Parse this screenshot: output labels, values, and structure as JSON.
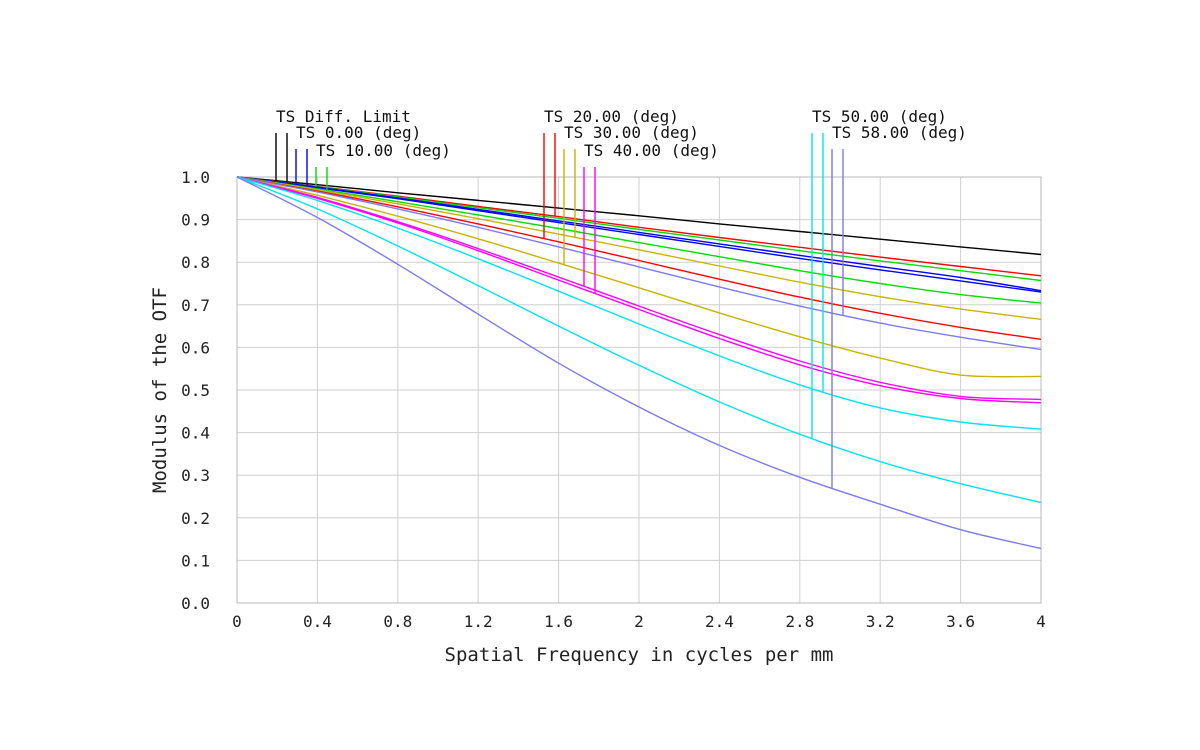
{
  "chart_data": {
    "type": "line",
    "xlabel": "Spatial Frequency in cycles per mm",
    "ylabel": "Modulus of the OTF",
    "xlim": [
      0,
      4
    ],
    "ylim": [
      0,
      1
    ],
    "x_ticks": [
      "0",
      "0.4",
      "0.8",
      "1.2",
      "1.6",
      "2",
      "2.4",
      "2.8",
      "3.2",
      "3.6",
      "4"
    ],
    "y_ticks": [
      "0.0",
      "0.1",
      "0.2",
      "0.3",
      "0.4",
      "0.5",
      "0.6",
      "0.7",
      "0.8",
      "0.9",
      "1.0"
    ],
    "grid": true,
    "legend_groups": [
      {
        "label": "TS Diff. Limit",
        "colors": [
          "#000000",
          "#000000"
        ]
      },
      {
        "label": "TS 0.00 (deg)",
        "colors": [
          "#0000ff",
          "#0000ff"
        ]
      },
      {
        "label": "TS 10.00 (deg)",
        "colors": [
          "#00dd00",
          "#00dd00"
        ]
      },
      {
        "label": "TS 20.00 (deg)",
        "colors": [
          "#ff0000",
          "#ff0000"
        ]
      },
      {
        "label": "TS 30.00 (deg)",
        "colors": [
          "#c8b400",
          "#c8b400"
        ]
      },
      {
        "label": "TS 40.00 (deg)",
        "colors": [
          "#ff00ff",
          "#ff00ff"
        ]
      },
      {
        "label": "TS 50.00 (deg)",
        "colors": [
          "#00e5ee",
          "#00e5ee"
        ]
      },
      {
        "label": "TS 58.00 (deg)",
        "colors": [
          "#7b7bef",
          "#7b7bef"
        ]
      }
    ],
    "series": [
      {
        "color": "#000000",
        "values": [
          [
            0,
            1.0
          ],
          [
            0.4,
            0.982
          ],
          [
            0.8,
            0.963
          ],
          [
            1.2,
            0.945
          ],
          [
            1.6,
            0.927
          ],
          [
            2,
            0.909
          ],
          [
            2.4,
            0.89
          ],
          [
            2.8,
            0.872
          ],
          [
            3.2,
            0.854
          ],
          [
            3.6,
            0.836
          ],
          [
            4,
            0.818
          ]
        ]
      },
      {
        "color": "#ff0000",
        "values": [
          [
            0,
            1.0
          ],
          [
            0.4,
            0.978
          ],
          [
            0.8,
            0.955
          ],
          [
            1.2,
            0.931
          ],
          [
            1.6,
            0.907
          ],
          [
            2,
            0.882
          ],
          [
            2.4,
            0.858
          ],
          [
            2.8,
            0.835
          ],
          [
            3.2,
            0.812
          ],
          [
            3.6,
            0.79
          ],
          [
            4,
            0.768
          ]
        ]
      },
      {
        "color": "#00dd00",
        "values": [
          [
            0,
            1.0
          ],
          [
            0.4,
            0.977
          ],
          [
            0.8,
            0.953
          ],
          [
            1.2,
            0.928
          ],
          [
            1.6,
            0.903
          ],
          [
            2,
            0.877
          ],
          [
            2.4,
            0.852
          ],
          [
            2.8,
            0.827
          ],
          [
            3.2,
            0.803
          ],
          [
            3.6,
            0.78
          ],
          [
            4,
            0.757
          ]
        ]
      },
      {
        "color": "#0000ff",
        "values": [
          [
            0,
            1.0
          ],
          [
            0.4,
            0.976
          ],
          [
            0.8,
            0.951
          ],
          [
            1.2,
            0.924
          ],
          [
            1.6,
            0.897
          ],
          [
            2,
            0.87
          ],
          [
            2.4,
            0.843
          ],
          [
            2.8,
            0.816
          ],
          [
            3.2,
            0.79
          ],
          [
            3.6,
            0.764
          ],
          [
            4,
            0.733
          ]
        ]
      },
      {
        "color": "#0000ff",
        "values": [
          [
            0,
            1.0
          ],
          [
            0.4,
            0.975
          ],
          [
            0.8,
            0.949
          ],
          [
            1.2,
            0.921
          ],
          [
            1.6,
            0.893
          ],
          [
            2,
            0.865
          ],
          [
            2.4,
            0.837
          ],
          [
            2.8,
            0.809
          ],
          [
            3.2,
            0.782
          ],
          [
            3.6,
            0.756
          ],
          [
            4,
            0.73
          ]
        ]
      },
      {
        "color": "#00dd00",
        "values": [
          [
            0,
            1.0
          ],
          [
            0.4,
            0.972
          ],
          [
            0.8,
            0.942
          ],
          [
            1.2,
            0.911
          ],
          [
            1.6,
            0.879
          ],
          [
            2,
            0.846
          ],
          [
            2.4,
            0.813
          ],
          [
            2.8,
            0.78
          ],
          [
            3.2,
            0.75
          ],
          [
            3.6,
            0.724
          ],
          [
            4,
            0.704
          ]
        ]
      },
      {
        "color": "#c8b400",
        "values": [
          [
            0,
            1.0
          ],
          [
            0.4,
            0.97
          ],
          [
            0.8,
            0.937
          ],
          [
            1.2,
            0.902
          ],
          [
            1.6,
            0.866
          ],
          [
            2,
            0.829
          ],
          [
            2.4,
            0.791
          ],
          [
            2.8,
            0.753
          ],
          [
            3.2,
            0.719
          ],
          [
            3.6,
            0.69
          ],
          [
            4,
            0.666
          ]
        ]
      },
      {
        "color": "#ff0000",
        "values": [
          [
            0,
            1.0
          ],
          [
            0.4,
            0.967
          ],
          [
            0.8,
            0.93
          ],
          [
            1.2,
            0.89
          ],
          [
            1.6,
            0.848
          ],
          [
            2,
            0.804
          ],
          [
            2.4,
            0.76
          ],
          [
            2.8,
            0.718
          ],
          [
            3.2,
            0.68
          ],
          [
            3.6,
            0.647
          ],
          [
            4,
            0.619
          ]
        ]
      },
      {
        "color": "#7b7bef",
        "values": [
          [
            0,
            1.0
          ],
          [
            0.4,
            0.965
          ],
          [
            0.8,
            0.925
          ],
          [
            1.2,
            0.882
          ],
          [
            1.6,
            0.836
          ],
          [
            2,
            0.789
          ],
          [
            2.4,
            0.742
          ],
          [
            2.8,
            0.697
          ],
          [
            3.2,
            0.657
          ],
          [
            3.6,
            0.624
          ],
          [
            4,
            0.595
          ]
        ]
      },
      {
        "color": "#c8b400",
        "values": [
          [
            0,
            1.0
          ],
          [
            0.4,
            0.957
          ],
          [
            0.8,
            0.908
          ],
          [
            1.2,
            0.855
          ],
          [
            1.6,
            0.798
          ],
          [
            2,
            0.74
          ],
          [
            2.4,
            0.681
          ],
          [
            2.8,
            0.625
          ],
          [
            3.2,
            0.575
          ],
          [
            3.6,
            0.535
          ],
          [
            4,
            0.532
          ]
        ]
      },
      {
        "color": "#ff00ff",
        "values": [
          [
            0,
            1.0
          ],
          [
            0.4,
            0.952
          ],
          [
            0.8,
            0.895
          ],
          [
            1.2,
            0.832
          ],
          [
            1.6,
            0.765
          ],
          [
            2,
            0.697
          ],
          [
            2.4,
            0.63
          ],
          [
            2.8,
            0.568
          ],
          [
            3.2,
            0.518
          ],
          [
            3.6,
            0.485
          ],
          [
            4,
            0.478
          ]
        ]
      },
      {
        "color": "#ff00ff",
        "values": [
          [
            0,
            1.0
          ],
          [
            0.4,
            0.95
          ],
          [
            0.8,
            0.892
          ],
          [
            1.2,
            0.827
          ],
          [
            1.6,
            0.758
          ],
          [
            2,
            0.689
          ],
          [
            2.4,
            0.621
          ],
          [
            2.8,
            0.559
          ],
          [
            3.2,
            0.51
          ],
          [
            3.6,
            0.48
          ],
          [
            4,
            0.47
          ]
        ]
      },
      {
        "color": "#00e5ee",
        "values": [
          [
            0,
            1.0
          ],
          [
            0.4,
            0.945
          ],
          [
            0.8,
            0.88
          ],
          [
            1.2,
            0.808
          ],
          [
            1.6,
            0.732
          ],
          [
            2,
            0.655
          ],
          [
            2.4,
            0.58
          ],
          [
            2.8,
            0.512
          ],
          [
            3.2,
            0.458
          ],
          [
            3.6,
            0.425
          ],
          [
            4,
            0.408
          ]
        ]
      },
      {
        "color": "#00e5ee",
        "values": [
          [
            0,
            1.0
          ],
          [
            0.4,
            0.925
          ],
          [
            0.8,
            0.838
          ],
          [
            1.2,
            0.745
          ],
          [
            1.6,
            0.65
          ],
          [
            2,
            0.558
          ],
          [
            2.4,
            0.472
          ],
          [
            2.8,
            0.396
          ],
          [
            3.2,
            0.332
          ],
          [
            3.6,
            0.28
          ],
          [
            4,
            0.236
          ]
        ]
      },
      {
        "color": "#7b7bef",
        "values": [
          [
            0,
            1.0
          ],
          [
            0.4,
            0.905
          ],
          [
            0.8,
            0.795
          ],
          [
            1.2,
            0.678
          ],
          [
            1.6,
            0.563
          ],
          [
            2,
            0.46
          ],
          [
            2.4,
            0.37
          ],
          [
            2.8,
            0.295
          ],
          [
            3.2,
            0.232
          ],
          [
            3.6,
            0.172
          ],
          [
            4,
            0.128
          ]
        ]
      }
    ]
  }
}
